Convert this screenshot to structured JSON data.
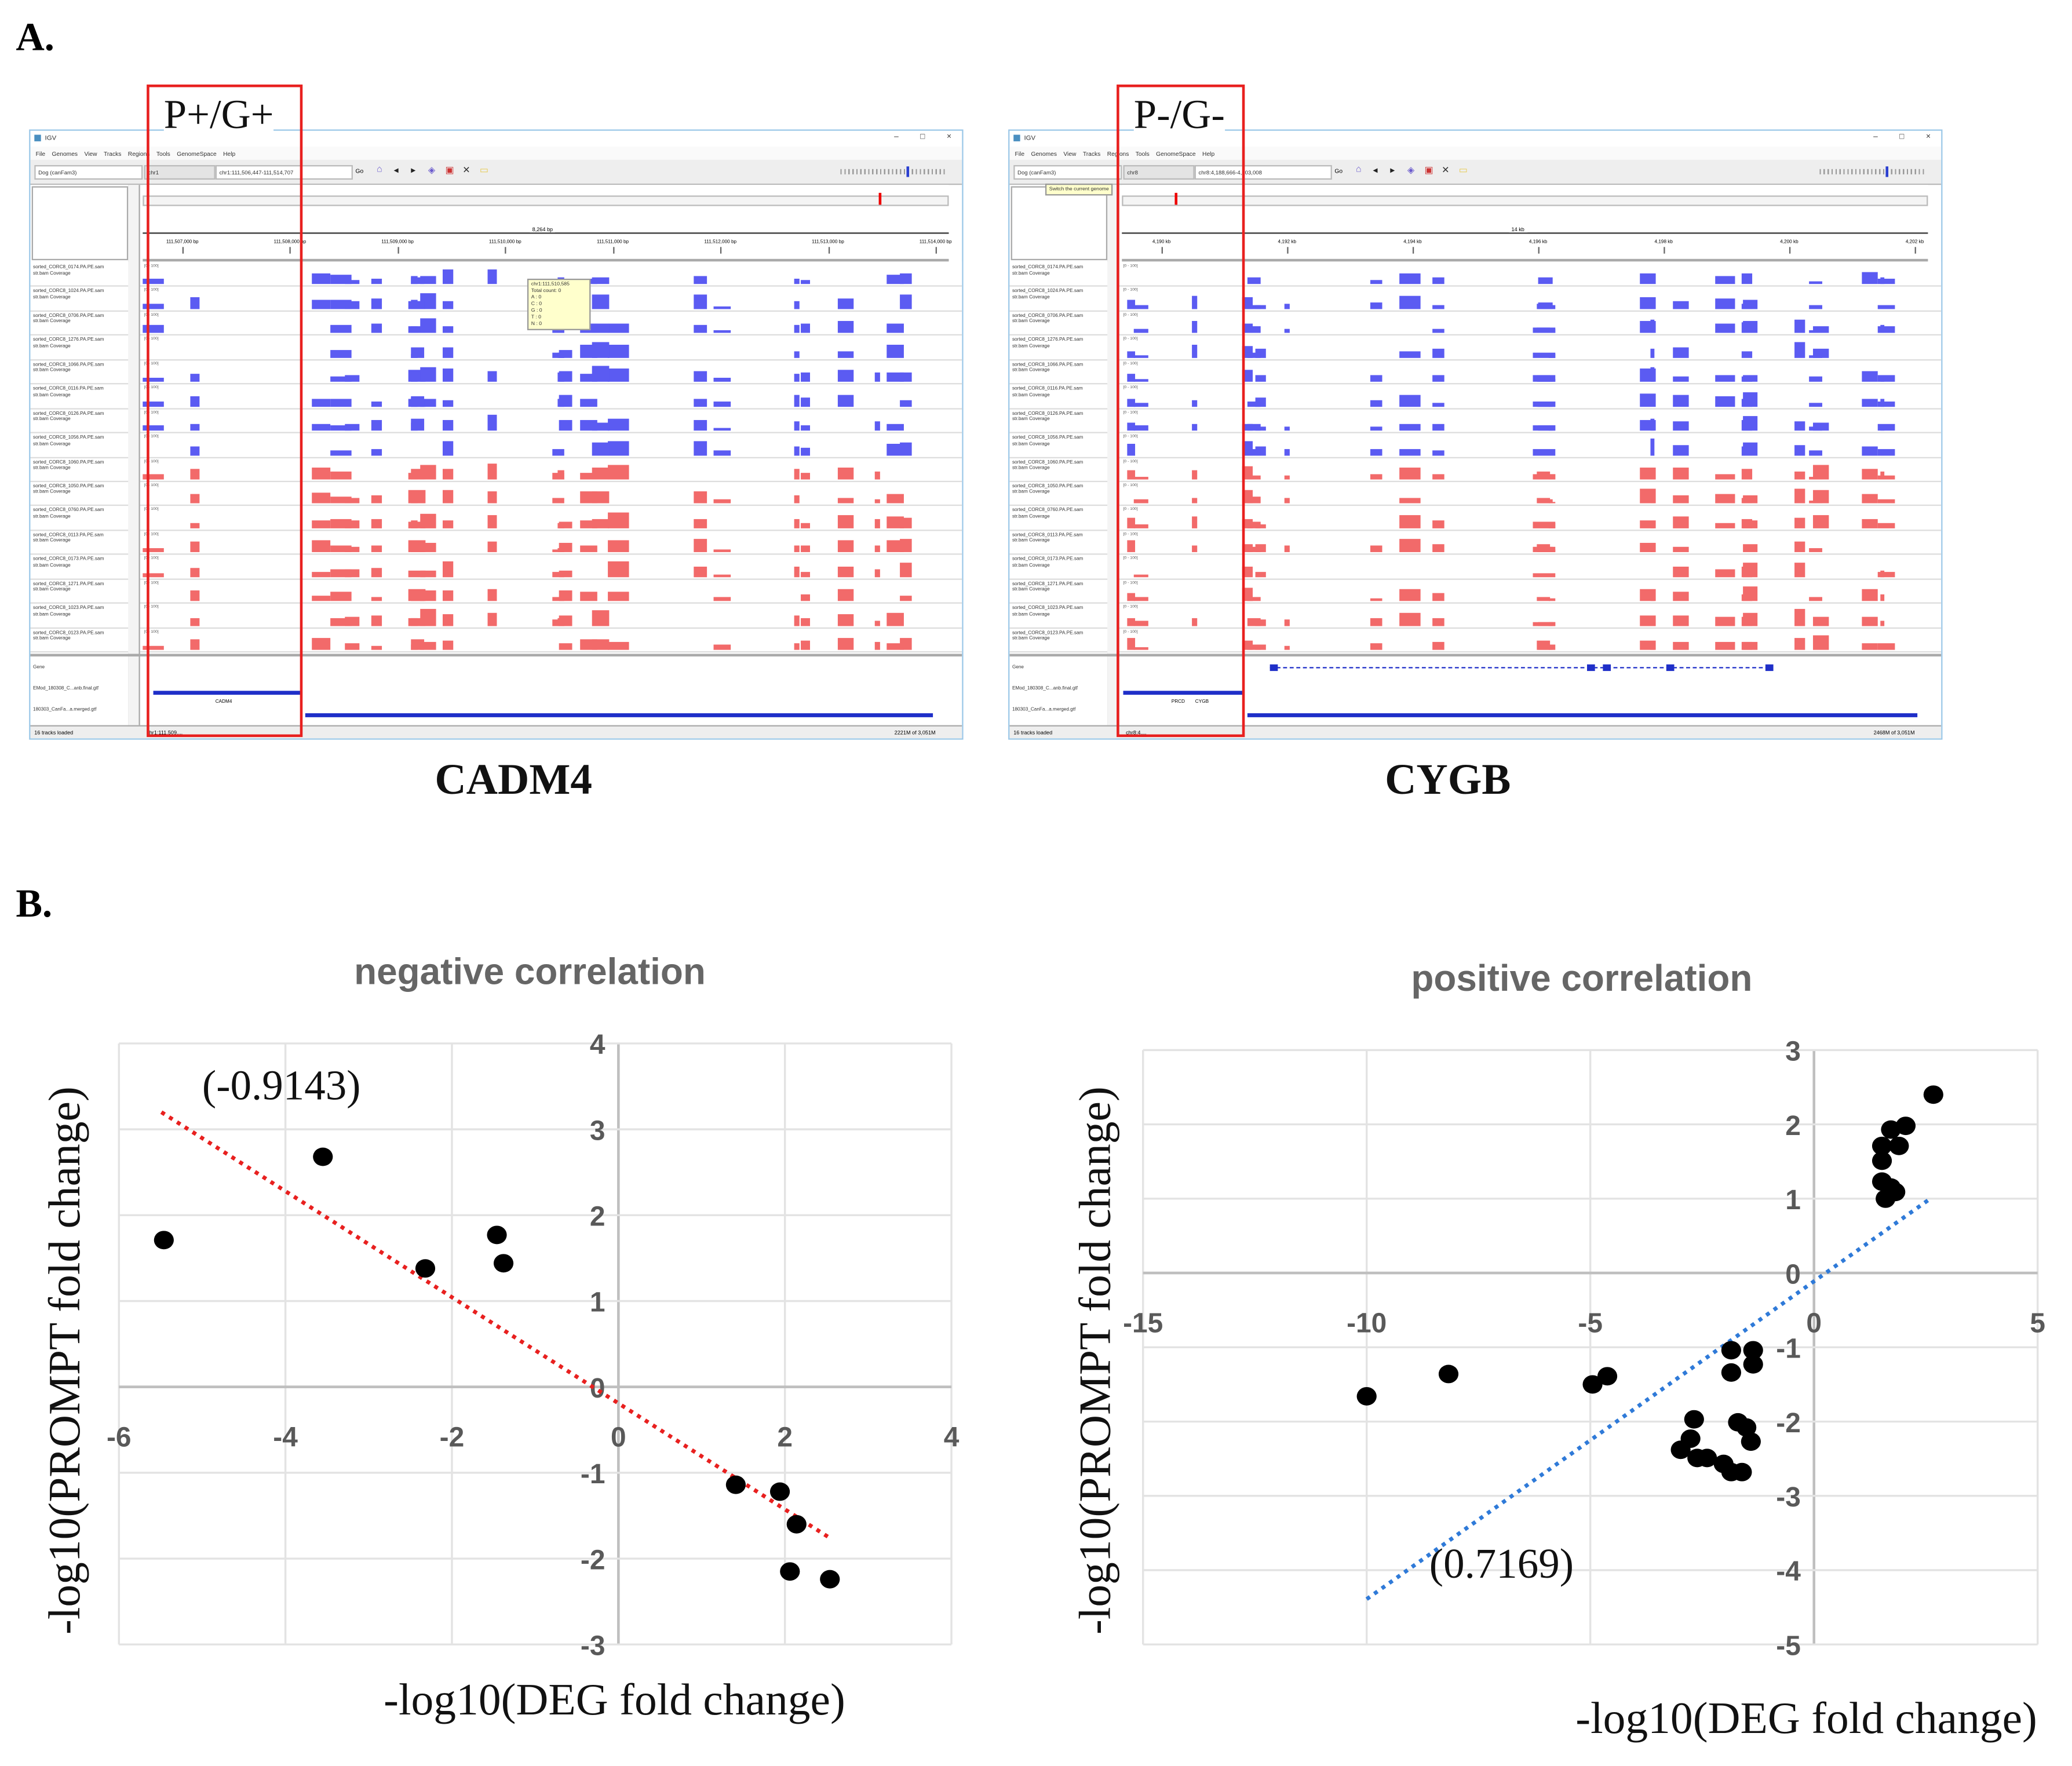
{
  "panel_a": {
    "letter": "A.",
    "igv": [
      {
        "window_title": "IGV",
        "menu": [
          "File",
          "Genomes",
          "View",
          "Tracks",
          "Regions",
          "Tools",
          "GenomeSpace",
          "Help"
        ],
        "genome": "Dog (canFam3)",
        "chromosome": "chr1",
        "locus": "chr1:111,506,447-111,514,707",
        "go_label": "Go",
        "scale_text": "8,264 bp",
        "ruler_ticks": [
          "111,507,000 bp",
          "111,508,000 bp",
          "111,509,000 bp",
          "111,510,000 bp",
          "111,511,000 bp",
          "111,512,000 bp",
          "111,513,000 bp",
          "111,514,000 bp"
        ],
        "track_names": [
          "sorted_CORC8_0174.PA.PE.sam",
          "sorted_CORC8_1024.PA.PE.sam",
          "sorted_CORC8_0706.PA.PE.sam",
          "sorted_CORC8_1276.PA.PE.sam",
          "sorted_CORC8_1066.PA.PE.sam",
          "sorted_CORC8_0116.PA.PE.sam",
          "sorted_CORC8_0126.PA.PE.sam",
          "sorted_CORC8_1056.PA.PE.sam",
          "sorted_CORC8_1060.PA.PE.sam",
          "sorted_CORC8_1050.PA.PE.sam",
          "sorted_CORC8_0760.PA.PE.sam",
          "sorted_CORC8_0113.PA.PE.sam",
          "sorted_CORC8_0173.PA.PE.sam",
          "sorted_CORC8_1271.PA.PE.sam",
          "sorted_CORC8_1023.PA.PE.sam",
          "sorted_CORC8_0123.PA.PE.sam"
        ],
        "track_sub": "str.bam Coverage",
        "track_range": "[0 - 100]",
        "gene_tracks": [
          "Gene",
          "EMod_180308_C...anb.final.gtf",
          "180303_CanFa...a.merged.gtf"
        ],
        "gene_label": "CADM4",
        "status_left": "16 tracks loaded",
        "status_locus": "chr1:111,509,...",
        "status_mem": "2221M of 3,051M",
        "tooltip": [
          "chr1:111,510,585",
          "Total count: 0",
          "A : 0",
          "C : 0",
          "G : 0",
          "T : 0",
          "N : 0"
        ],
        "box_label": "P+/G+",
        "caption": "CADM4",
        "n_blue": 8
      },
      {
        "window_title": "IGV",
        "menu": [
          "File",
          "Genomes",
          "View",
          "Tracks",
          "Regions",
          "Tools",
          "GenomeSpace",
          "Help"
        ],
        "genome": "Dog (canFam3)",
        "chromosome": "chr8",
        "locus": "chr8:4,188,666-4,203,008",
        "go_label": "Go",
        "scale_text": "14 kb",
        "ruler_ticks": [
          "4,190 kb",
          "4,192 kb",
          "4,194 kb",
          "4,196 kb",
          "4,198 kb",
          "4,200 kb",
          "4,202 kb"
        ],
        "track_names": [
          "sorted_CORC8_0174.PA.PE.sam",
          "sorted_CORC8_1024.PA.PE.sam",
          "sorted_CORC8_0706.PA.PE.sam",
          "sorted_CORC8_1276.PA.PE.sam",
          "sorted_CORC8_1066.PA.PE.sam",
          "sorted_CORC8_0116.PA.PE.sam",
          "sorted_CORC8_0126.PA.PE.sam",
          "sorted_CORC8_1056.PA.PE.sam",
          "sorted_CORC8_1060.PA.PE.sam",
          "sorted_CORC8_1050.PA.PE.sam",
          "sorted_CORC8_0760.PA.PE.sam",
          "sorted_CORC8_0113.PA.PE.sam",
          "sorted_CORC8_0173.PA.PE.sam",
          "sorted_CORC8_1271.PA.PE.sam",
          "sorted_CORC8_1023.PA.PE.sam",
          "sorted_CORC8_0123.PA.PE.sam"
        ],
        "track_sub": "str.bam Coverage",
        "track_range": "[0 - 100]",
        "gene_tracks": [
          "Gene",
          "EMod_180308_C...anb.final.gtf",
          "180303_CanFa...a.merged.gtf"
        ],
        "gene_label": "PRCD",
        "gene_label2": "CYGB",
        "status_left": "16 tracks loaded",
        "status_locus": "chr8:4,...",
        "status_mem": "2468M of 3,051M",
        "tooltip": [
          "Switch the current genome"
        ],
        "box_label": "P-/G-",
        "caption": "CYGB",
        "n_blue": 8
      }
    ],
    "colors": {
      "forward": "#5b5bf2",
      "reverse": "#f26a6a",
      "box": "#e8201f"
    }
  },
  "panel_b": {
    "letter": "B."
  },
  "chart_data": [
    {
      "type": "scatter",
      "title": "negative correlation",
      "xlabel": "-log10(DEG fold change)",
      "ylabel": "-log10(PROMPT fold change)",
      "xlim": [
        -6,
        4
      ],
      "ylim": [
        -3,
        4
      ],
      "xticks": [
        -6,
        -4,
        -2,
        0,
        2,
        4
      ],
      "yticks": [
        -3,
        -2,
        -1,
        0,
        1,
        2,
        3,
        4
      ],
      "grid": true,
      "points": [
        [
          -5.46,
          1.71
        ],
        [
          -3.55,
          2.68
        ],
        [
          -2.32,
          1.38
        ],
        [
          -1.46,
          1.77
        ],
        [
          -1.38,
          1.44
        ],
        [
          1.41,
          -1.14
        ],
        [
          1.94,
          -1.22
        ],
        [
          2.14,
          -1.6
        ],
        [
          2.06,
          -2.15
        ],
        [
          2.54,
          -2.24
        ]
      ],
      "trendline": {
        "from": [
          -5.49,
          3.2
        ],
        "to": [
          2.54,
          -1.76
        ],
        "color": "#e8201f"
      },
      "annotation": "(-0.9143)",
      "annotation_at": [
        -5.0,
        3.35
      ]
    },
    {
      "type": "scatter",
      "title": "positive correlation",
      "xlabel": "-log10(DEG fold change)",
      "ylabel": "-log10(PROMPT fold change)",
      "xlim": [
        -15,
        5
      ],
      "ylim": [
        -5,
        3
      ],
      "xticks": [
        -15,
        -10,
        -5,
        0,
        5
      ],
      "yticks": [
        -5,
        -4,
        -3,
        -2,
        -1,
        0,
        1,
        2,
        3
      ],
      "grid": true,
      "points": [
        [
          -10,
          -1.66
        ],
        [
          -8.17,
          -1.36
        ],
        [
          -4.95,
          -1.5
        ],
        [
          -4.62,
          -1.39
        ],
        [
          -1.85,
          -1.04
        ],
        [
          -1.36,
          -1.04
        ],
        [
          -1.85,
          -1.34
        ],
        [
          -1.36,
          -1.23
        ],
        [
          -2.68,
          -1.97
        ],
        [
          -2.76,
          -2.23
        ],
        [
          -2.98,
          -2.38
        ],
        [
          -2.61,
          -2.49
        ],
        [
          -2.39,
          -2.49
        ],
        [
          -2.02,
          -2.57
        ],
        [
          -1.85,
          -2.68
        ],
        [
          -1.61,
          -2.68
        ],
        [
          -1.7,
          -2.01
        ],
        [
          -1.51,
          -2.08
        ],
        [
          -1.41,
          -2.27
        ],
        [
          2.67,
          2.4
        ],
        [
          2.05,
          1.98
        ],
        [
          1.72,
          1.93
        ],
        [
          1.52,
          1.71
        ],
        [
          1.9,
          1.71
        ],
        [
          1.52,
          1.51
        ],
        [
          1.52,
          1.23
        ],
        [
          1.72,
          1.15
        ],
        [
          1.82,
          1.09
        ],
        [
          1.6,
          1.0
        ]
      ],
      "trendline": {
        "from": [
          -10,
          -4.39
        ],
        "to": [
          2.6,
          1.0
        ],
        "color": "#2f7ad8"
      },
      "annotation": "(0.7169)",
      "annotation_at": [
        -8.6,
        -4.1
      ]
    }
  ]
}
